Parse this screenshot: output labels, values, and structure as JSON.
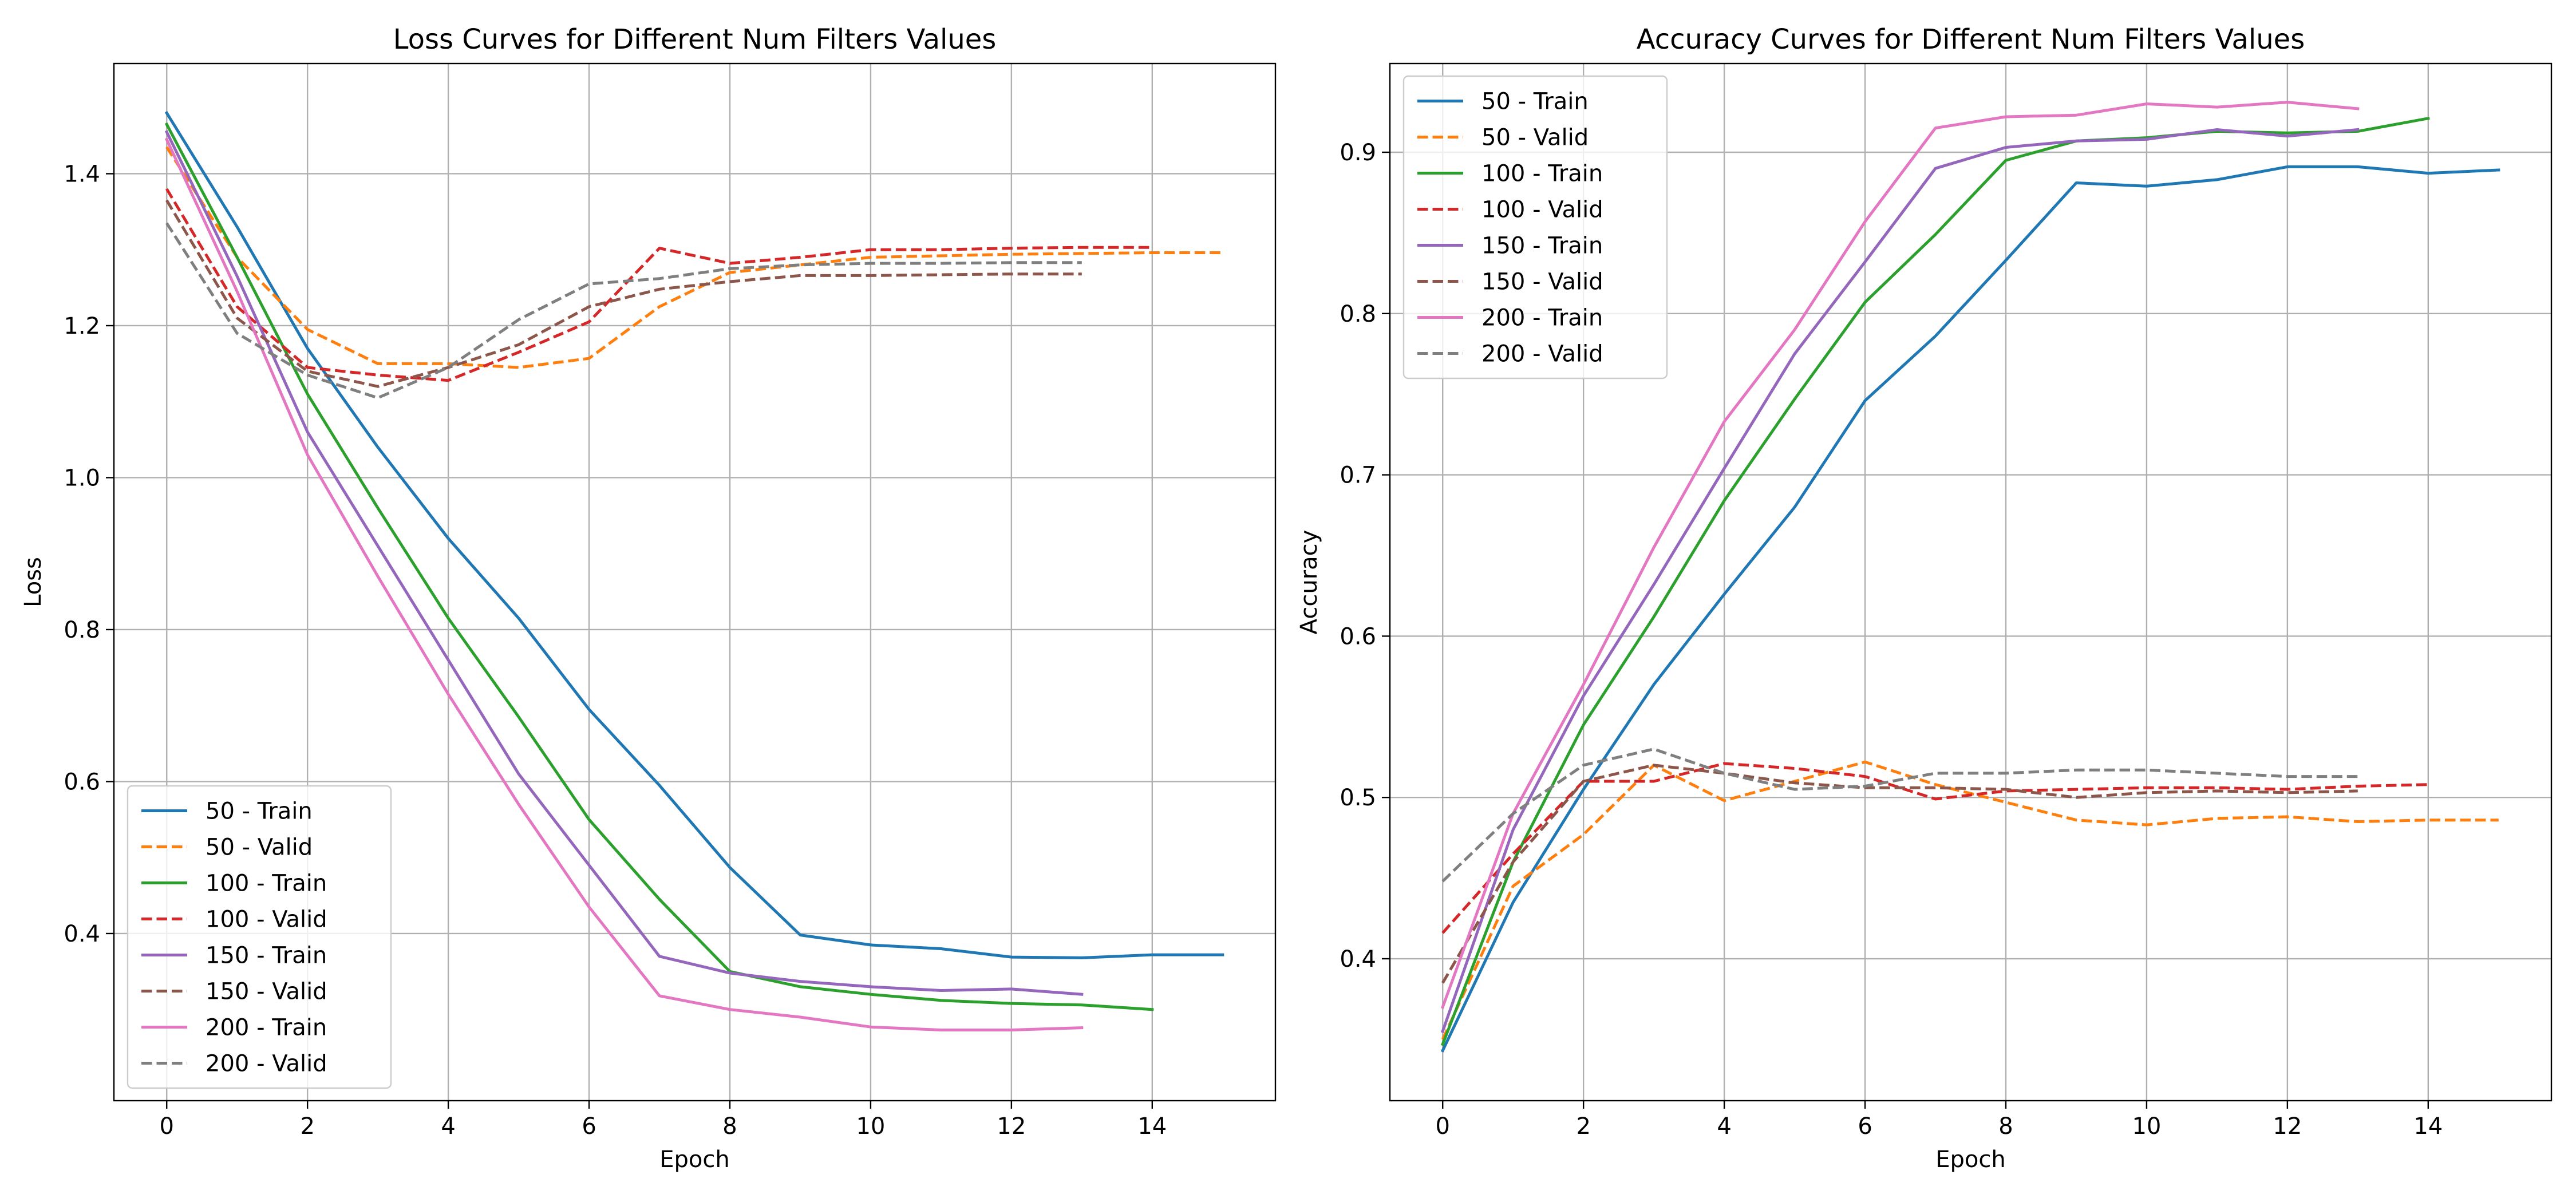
{
  "colors": {
    "blue": "#1f77b4",
    "orange": "#ff7f0e",
    "green": "#2ca02c",
    "red": "#d62728",
    "purple": "#9467bd",
    "brown": "#8c564b",
    "pink": "#e377c2",
    "gray": "#7f7f7f",
    "grid": "#b0b0b0",
    "axes": "#000000"
  },
  "chart_data": [
    {
      "type": "line",
      "title": "Loss Curves for Different Num Filters Values",
      "xlabel": "Epoch",
      "ylabel": "Loss",
      "xlim": [
        -0.75,
        15.75
      ],
      "ylim": [
        0.18,
        1.545
      ],
      "xticks": [
        0,
        2,
        4,
        6,
        8,
        10,
        12,
        14
      ],
      "yticks": [
        0.4,
        0.6,
        0.8,
        1.0,
        1.2,
        1.4
      ],
      "xtick_labels": [
        "0",
        "2",
        "4",
        "6",
        "8",
        "10",
        "12",
        "14"
      ],
      "ytick_labels": [
        "0.4",
        "0.6",
        "0.8",
        "1.0",
        "1.2",
        "1.4"
      ],
      "grid": true,
      "legend_position": "lower-left",
      "series": [
        {
          "name": "50 - Train",
          "color": "#1f77b4",
          "dash": "solid",
          "values": [
            1.48,
            1.33,
            1.17,
            1.04,
            0.92,
            0.815,
            0.695,
            0.595,
            0.487,
            0.398,
            0.385,
            0.38,
            0.369,
            0.368,
            0.372,
            0.372
          ]
        },
        {
          "name": "50 - Valid",
          "color": "#ff7f0e",
          "dash": "dashed",
          "values": [
            1.435,
            1.29,
            1.195,
            1.15,
            1.15,
            1.145,
            1.157,
            1.225,
            1.27,
            1.28,
            1.29,
            1.292,
            1.294,
            1.295,
            1.296,
            1.296
          ]
        },
        {
          "name": "100 - Train",
          "color": "#2ca02c",
          "dash": "solid",
          "values": [
            1.465,
            1.29,
            1.11,
            0.96,
            0.815,
            0.685,
            0.55,
            0.445,
            0.35,
            0.33,
            0.32,
            0.312,
            0.308,
            0.306,
            0.3
          ]
        },
        {
          "name": "100 - Valid",
          "color": "#d62728",
          "dash": "dashed",
          "values": [
            1.38,
            1.225,
            1.145,
            1.135,
            1.128,
            1.165,
            1.205,
            1.302,
            1.282,
            1.29,
            1.3,
            1.3,
            1.302,
            1.303,
            1.303
          ]
        },
        {
          "name": "150 - Train",
          "color": "#9467bd",
          "dash": "solid",
          "values": [
            1.455,
            1.265,
            1.06,
            0.91,
            0.76,
            0.61,
            0.49,
            0.37,
            0.348,
            0.337,
            0.33,
            0.325,
            0.327,
            0.32
          ]
        },
        {
          "name": "150 - Valid",
          "color": "#8c564b",
          "dash": "dashed",
          "values": [
            1.365,
            1.21,
            1.14,
            1.12,
            1.145,
            1.175,
            1.225,
            1.248,
            1.258,
            1.266,
            1.266,
            1.267,
            1.268,
            1.268
          ]
        },
        {
          "name": "200 - Train",
          "color": "#e377c2",
          "dash": "solid",
          "values": [
            1.445,
            1.245,
            1.03,
            0.87,
            0.715,
            0.57,
            0.435,
            0.318,
            0.3,
            0.29,
            0.277,
            0.273,
            0.273,
            0.276
          ]
        },
        {
          "name": "200 - Valid",
          "color": "#7f7f7f",
          "dash": "dashed",
          "values": [
            1.335,
            1.19,
            1.135,
            1.105,
            1.145,
            1.208,
            1.255,
            1.262,
            1.275,
            1.28,
            1.282,
            1.282,
            1.283,
            1.283
          ]
        }
      ]
    },
    {
      "type": "line",
      "title": "Accuracy Curves for Different Num Filters Values",
      "xlabel": "Epoch",
      "ylabel": "Accuracy",
      "xlim": [
        -0.75,
        15.75
      ],
      "ylim": [
        0.312,
        0.955
      ],
      "xticks": [
        0,
        2,
        4,
        6,
        8,
        10,
        12,
        14
      ],
      "yticks": [
        0.4,
        0.5,
        0.6,
        0.7,
        0.8,
        0.9
      ],
      "xtick_labels": [
        "0",
        "2",
        "4",
        "6",
        "8",
        "10",
        "12",
        "14"
      ],
      "ytick_labels": [
        "0.4",
        "0.5",
        "0.6",
        "0.7",
        "0.8",
        "0.9"
      ],
      "grid": true,
      "legend_position": "upper-left",
      "series": [
        {
          "name": "50 - Train",
          "color": "#1f77b4",
          "dash": "solid",
          "values": [
            0.343,
            0.435,
            0.505,
            0.57,
            0.626,
            0.68,
            0.746,
            0.786,
            0.833,
            0.881,
            0.879,
            0.883,
            0.891,
            0.891,
            0.887,
            0.889
          ]
        },
        {
          "name": "50 - Valid",
          "color": "#ff7f0e",
          "dash": "dashed",
          "values": [
            0.35,
            0.445,
            0.477,
            0.52,
            0.498,
            0.51,
            0.522,
            0.508,
            0.497,
            0.486,
            0.483,
            0.487,
            0.488,
            0.485,
            0.486,
            0.486
          ]
        },
        {
          "name": "100 - Train",
          "color": "#2ca02c",
          "dash": "solid",
          "values": [
            0.347,
            0.46,
            0.545,
            0.612,
            0.684,
            0.747,
            0.807,
            0.849,
            0.895,
            0.907,
            0.909,
            0.913,
            0.912,
            0.913,
            0.921
          ]
        },
        {
          "name": "100 - Valid",
          "color": "#d62728",
          "dash": "dashed",
          "values": [
            0.416,
            0.465,
            0.51,
            0.51,
            0.521,
            0.518,
            0.513,
            0.499,
            0.504,
            0.505,
            0.506,
            0.506,
            0.505,
            0.507,
            0.508
          ]
        },
        {
          "name": "150 - Train",
          "color": "#9467bd",
          "dash": "solid",
          "values": [
            0.355,
            0.48,
            0.563,
            0.632,
            0.704,
            0.775,
            0.832,
            0.89,
            0.903,
            0.907,
            0.908,
            0.914,
            0.91,
            0.914
          ]
        },
        {
          "name": "150 - Valid",
          "color": "#8c564b",
          "dash": "dashed",
          "values": [
            0.385,
            0.46,
            0.51,
            0.52,
            0.515,
            0.509,
            0.506,
            0.506,
            0.505,
            0.5,
            0.503,
            0.504,
            0.503,
            0.504
          ]
        },
        {
          "name": "200 - Train",
          "color": "#e377c2",
          "dash": "solid",
          "values": [
            0.37,
            0.49,
            0.57,
            0.655,
            0.733,
            0.79,
            0.857,
            0.915,
            0.922,
            0.923,
            0.93,
            0.928,
            0.931,
            0.927
          ]
        },
        {
          "name": "200 - Valid",
          "color": "#7f7f7f",
          "dash": "dashed",
          "values": [
            0.448,
            0.49,
            0.52,
            0.53,
            0.515,
            0.505,
            0.507,
            0.515,
            0.515,
            0.517,
            0.517,
            0.515,
            0.513,
            0.513
          ]
        }
      ]
    }
  ]
}
